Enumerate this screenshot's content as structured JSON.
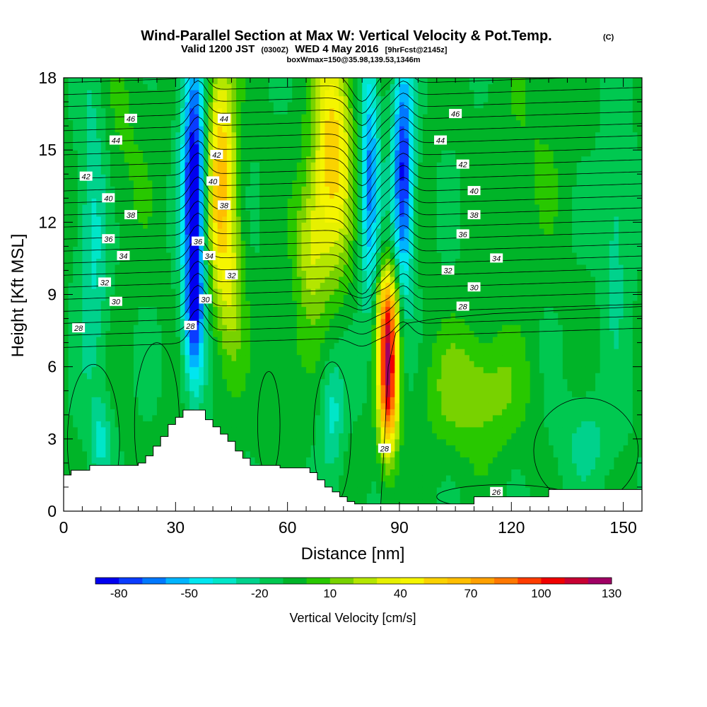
{
  "title": {
    "main": "Wind-Parallel Section at Max W: Vertical Velocity & Pot.Temp.",
    "main_unit": "(C)",
    "line2_a": "Valid 1200 JST",
    "line2_b": "(0300Z)",
    "line2_c": "WED 4 May 2016",
    "line2_d": "[9hrFcst@2145z]",
    "line3": "boxWmax=150@35.98,139.53,1346m"
  },
  "chart_data": {
    "type": "heatmap",
    "xlabel": "Distance [nm]",
    "ylabel": "Height [Kft MSL]",
    "xlim": [
      0,
      155
    ],
    "ylim": [
      0,
      18
    ],
    "xticks": [
      0,
      30,
      60,
      90,
      120,
      150
    ],
    "xtick_labels": [
      "0",
      "30",
      "60",
      "90",
      "120",
      "150"
    ],
    "yticks": [
      0,
      3,
      6,
      9,
      12,
      15,
      18
    ],
    "ytick_labels": [
      "0",
      "3",
      "6",
      "9",
      "12",
      "15",
      "18"
    ],
    "colorbar": {
      "label": "Vertical Velocity [cm/s]",
      "tick_labels": [
        "-80",
        "-50",
        "-20",
        "10",
        "40",
        "70",
        "100",
        "130"
      ],
      "tick_values": [
        -80,
        -50,
        -20,
        10,
        40,
        70,
        100,
        130
      ],
      "levels": [
        -90,
        -80,
        -70,
        -60,
        -50,
        -40,
        -30,
        -20,
        -10,
        0,
        10,
        20,
        30,
        40,
        50,
        60,
        70,
        80,
        90,
        100,
        110,
        120,
        130
      ],
      "colors": [
        "#0000f0",
        "#0a3cff",
        "#0078ff",
        "#00b4ff",
        "#00e6f0",
        "#00e6c8",
        "#00d28c",
        "#00c850",
        "#00b428",
        "#28c800",
        "#78d200",
        "#b4e600",
        "#e6f000",
        "#f5f500",
        "#fad200",
        "#ffbe00",
        "#ffa000",
        "#ff7800",
        "#ff3c00",
        "#f00000",
        "#c80032",
        "#a00064",
        "#6e0096"
      ]
    },
    "terrain_profile": {
      "x": [
        0,
        2,
        2,
        7,
        7,
        12,
        12,
        20,
        20,
        22,
        22,
        24,
        24,
        26,
        26,
        28,
        28,
        30,
        30,
        32,
        32,
        34,
        34,
        36,
        36,
        38,
        38,
        40,
        40,
        42,
        42,
        44,
        44,
        46,
        46,
        48,
        48,
        50,
        50,
        52,
        52,
        54,
        54,
        56,
        56,
        58,
        58,
        60,
        60,
        62,
        62,
        64,
        64,
        66,
        66,
        68,
        68,
        70,
        70,
        72,
        72,
        74,
        74,
        76,
        76,
        78,
        78,
        80,
        80,
        82,
        82,
        84,
        84,
        86,
        86,
        88,
        88,
        90,
        90,
        92,
        92,
        100,
        100,
        110,
        110,
        120,
        120,
        125,
        125,
        130,
        130,
        145,
        145,
        150,
        150,
        155
      ],
      "y": [
        1.5,
        1.5,
        1.7,
        1.7,
        1.9,
        1.9,
        1.9,
        1.9,
        2.0,
        2.0,
        2.3,
        2.3,
        2.7,
        2.7,
        3.1,
        3.1,
        3.6,
        3.6,
        3.9,
        3.9,
        4.2,
        4.2,
        4.2,
        4.2,
        4.2,
        4.2,
        3.8,
        3.8,
        3.5,
        3.5,
        3.2,
        3.2,
        2.9,
        2.9,
        2.5,
        2.5,
        2.2,
        2.2,
        1.9,
        1.9,
        1.9,
        1.9,
        1.9,
        1.9,
        1.9,
        1.9,
        1.8,
        1.8,
        1.8,
        1.8,
        1.8,
        1.8,
        1.8,
        1.8,
        1.6,
        1.6,
        1.3,
        1.3,
        1.0,
        1.0,
        0.8,
        0.8,
        0.6,
        0.6,
        0.4,
        0.4,
        0.3,
        0.3,
        0.3,
        0.3,
        0.3,
        0.3,
        0.3,
        0.3,
        0.3,
        0.3,
        0.3,
        0.3,
        0.3,
        0.3,
        0.3,
        0.3,
        0.3,
        0.3,
        0.6,
        0.6,
        0.6,
        0.6,
        0.6,
        0.6,
        0.9,
        0.9,
        0.9,
        0.9,
        0.9,
        0.9
      ]
    },
    "w_features": [
      {
        "x": 35,
        "y": 14,
        "sx": 3.2,
        "sy": 5.5,
        "w": -85
      },
      {
        "x": 35,
        "y": 8,
        "sx": 2.8,
        "sy": 3.0,
        "w": -55
      },
      {
        "x": 42,
        "y": 14,
        "sx": 4.0,
        "sy": 5.0,
        "w": 70
      },
      {
        "x": 45,
        "y": 9,
        "sx": 3.5,
        "sy": 3.5,
        "w": 25
      },
      {
        "x": 72,
        "y": 15,
        "sx": 5.0,
        "sy": 5.0,
        "w": 65
      },
      {
        "x": 66,
        "y": 11,
        "sx": 4.0,
        "sy": 3.0,
        "w": 35
      },
      {
        "x": 82,
        "y": 14,
        "sx": 2.5,
        "sy": 5.5,
        "w": -55
      },
      {
        "x": 91,
        "y": 14,
        "sx": 2.8,
        "sy": 5.0,
        "w": -75
      },
      {
        "x": 87,
        "y": 5.5,
        "sx": 2.6,
        "sy": 3.0,
        "w": 120
      },
      {
        "x": 87,
        "y": 8.5,
        "sx": 3.0,
        "sy": 2.0,
        "w": 55
      },
      {
        "x": 110,
        "y": 5,
        "sx": 12.0,
        "sy": 2.5,
        "w": 28
      },
      {
        "x": 72,
        "y": 4,
        "sx": 3.0,
        "sy": 2.5,
        "w": -25
      },
      {
        "x": 60,
        "y": 6,
        "sx": 4.0,
        "sy": 2.0,
        "w": 10
      },
      {
        "x": 8,
        "y": 12,
        "sx": 4.0,
        "sy": 6.0,
        "w": -28
      },
      {
        "x": 10,
        "y": 3,
        "sx": 3.0,
        "sy": 1.5,
        "w": -25
      },
      {
        "x": 148,
        "y": 12,
        "sx": 4.0,
        "sy": 5.0,
        "w": -18
      },
      {
        "x": 125,
        "y": 15,
        "sx": 10.0,
        "sy": 4.0,
        "w": 8
      },
      {
        "x": 15,
        "y": 15,
        "sx": 8.0,
        "sy": 4.0,
        "w": 10
      },
      {
        "x": 140,
        "y": 3,
        "sx": 8.0,
        "sy": 2.0,
        "w": -15
      }
    ],
    "w_background": -8,
    "theta_contours": {
      "levels": [
        26,
        27,
        28,
        29,
        30,
        31,
        32,
        33,
        34,
        35,
        36,
        37,
        38,
        39,
        40,
        41,
        42,
        43,
        44,
        45,
        46,
        47,
        48
      ],
      "labels": [
        {
          "text": "46",
          "x": 18,
          "y": 16.3
        },
        {
          "text": "44",
          "x": 14,
          "y": 15.4
        },
        {
          "text": "42",
          "x": 6,
          "y": 13.9
        },
        {
          "text": "40",
          "x": 12,
          "y": 13.0
        },
        {
          "text": "38",
          "x": 18,
          "y": 12.3
        },
        {
          "text": "36",
          "x": 12,
          "y": 11.3
        },
        {
          "text": "34",
          "x": 16,
          "y": 10.6
        },
        {
          "text": "32",
          "x": 11,
          "y": 9.5
        },
        {
          "text": "30",
          "x": 14,
          "y": 8.7
        },
        {
          "text": "28",
          "x": 4,
          "y": 7.6
        },
        {
          "text": "44",
          "x": 43,
          "y": 16.3
        },
        {
          "text": "42",
          "x": 41,
          "y": 14.8
        },
        {
          "text": "40",
          "x": 40,
          "y": 13.7
        },
        {
          "text": "38",
          "x": 43,
          "y": 12.7
        },
        {
          "text": "36",
          "x": 36,
          "y": 11.2
        },
        {
          "text": "34",
          "x": 39,
          "y": 10.6
        },
        {
          "text": "32",
          "x": 45,
          "y": 9.8
        },
        {
          "text": "30",
          "x": 38,
          "y": 8.8
        },
        {
          "text": "28",
          "x": 34,
          "y": 7.7
        },
        {
          "text": "46",
          "x": 105,
          "y": 16.5
        },
        {
          "text": "44",
          "x": 101,
          "y": 15.4
        },
        {
          "text": "42",
          "x": 107,
          "y": 14.4
        },
        {
          "text": "40",
          "x": 110,
          "y": 13.3
        },
        {
          "text": "38",
          "x": 110,
          "y": 12.3
        },
        {
          "text": "36",
          "x": 107,
          "y": 11.5
        },
        {
          "text": "34",
          "x": 116,
          "y": 10.5
        },
        {
          "text": "32",
          "x": 103,
          "y": 10.0
        },
        {
          "text": "30",
          "x": 110,
          "y": 9.3
        },
        {
          "text": "28",
          "x": 107,
          "y": 8.5
        },
        {
          "text": "28",
          "x": 86,
          "y": 2.6
        },
        {
          "text": "26",
          "x": 116,
          "y": 0.8
        }
      ]
    }
  }
}
